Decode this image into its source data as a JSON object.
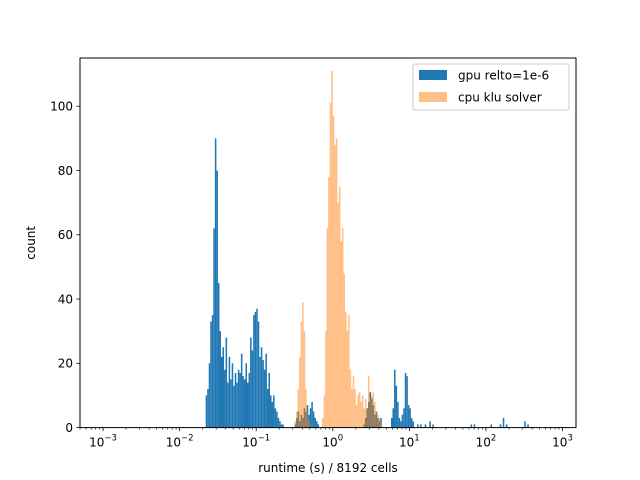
{
  "chart_data": {
    "type": "histogram",
    "xscale": "log",
    "xlim": [
      0.0005,
      1500
    ],
    "ylim": [
      0,
      115
    ],
    "xlabel": "runtime (s) / 8192 cells",
    "ylabel": "count",
    "grid": false,
    "legend_position": "upper right",
    "x_ticks": [
      {
        "value": 0.001,
        "base": "10",
        "exp": "−3"
      },
      {
        "value": 0.01,
        "base": "10",
        "exp": "−2"
      },
      {
        "value": 0.1,
        "base": "10",
        "exp": "−1"
      },
      {
        "value": 1,
        "base": "10",
        "exp": "0"
      },
      {
        "value": 10,
        "base": "10",
        "exp": "1"
      },
      {
        "value": 100,
        "base": "10",
        "exp": "2"
      },
      {
        "value": 1000,
        "base": "10",
        "exp": "3"
      }
    ],
    "y_ticks": [
      {
        "value": 0,
        "label": "0"
      },
      {
        "value": 20,
        "label": "20"
      },
      {
        "value": 40,
        "label": "40"
      },
      {
        "value": 60,
        "label": "60"
      },
      {
        "value": 80,
        "label": "80"
      },
      {
        "value": 100,
        "label": "100"
      }
    ],
    "series": [
      {
        "name": "gpu relto=1e-6",
        "color": "#1f77b4",
        "opacity": 1.0,
        "bin_width_log10": 0.02,
        "bins": [
          [
            -1.66,
            10
          ],
          [
            -1.64,
            12
          ],
          [
            -1.62,
            20
          ],
          [
            -1.6,
            33
          ],
          [
            -1.58,
            35
          ],
          [
            -1.56,
            62
          ],
          [
            -1.54,
            90
          ],
          [
            -1.52,
            80
          ],
          [
            -1.5,
            45
          ],
          [
            -1.48,
            30
          ],
          [
            -1.46,
            22
          ],
          [
            -1.44,
            25
          ],
          [
            -1.42,
            18
          ],
          [
            -1.4,
            28
          ],
          [
            -1.38,
            14
          ],
          [
            -1.36,
            22
          ],
          [
            -1.34,
            15
          ],
          [
            -1.32,
            20
          ],
          [
            -1.3,
            13
          ],
          [
            -1.28,
            17
          ],
          [
            -1.26,
            14
          ],
          [
            -1.24,
            18
          ],
          [
            -1.22,
            17
          ],
          [
            -1.2,
            23
          ],
          [
            -1.18,
            16
          ],
          [
            -1.16,
            15
          ],
          [
            -1.14,
            20
          ],
          [
            -1.12,
            14
          ],
          [
            -1.1,
            17
          ],
          [
            -1.08,
            28
          ],
          [
            -1.06,
            24
          ],
          [
            -1.04,
            35
          ],
          [
            -1.02,
            36
          ],
          [
            -1.0,
            37
          ],
          [
            -0.98,
            33
          ],
          [
            -0.96,
            22
          ],
          [
            -0.94,
            25
          ],
          [
            -0.92,
            21
          ],
          [
            -0.9,
            18
          ],
          [
            -0.88,
            23
          ],
          [
            -0.86,
            12
          ],
          [
            -0.84,
            17
          ],
          [
            -0.82,
            10
          ],
          [
            -0.8,
            8
          ],
          [
            -0.78,
            10
          ],
          [
            -0.76,
            6
          ],
          [
            -0.74,
            5
          ],
          [
            -0.72,
            3
          ],
          [
            -0.7,
            2
          ],
          [
            -0.68,
            1
          ],
          [
            -0.66,
            1
          ],
          [
            -0.5,
            1
          ],
          [
            -0.48,
            3
          ],
          [
            -0.46,
            5
          ],
          [
            -0.44,
            2
          ],
          [
            -0.42,
            4
          ],
          [
            -0.4,
            3
          ],
          [
            -0.38,
            6
          ],
          [
            -0.36,
            5
          ],
          [
            -0.34,
            7
          ],
          [
            -0.32,
            4
          ],
          [
            -0.3,
            6
          ],
          [
            -0.28,
            8
          ],
          [
            -0.26,
            5
          ],
          [
            -0.24,
            3
          ],
          [
            -0.22,
            2
          ],
          [
            -0.2,
            1
          ],
          [
            0.4,
            1
          ],
          [
            0.42,
            3
          ],
          [
            0.44,
            6
          ],
          [
            0.46,
            8
          ],
          [
            0.48,
            11
          ],
          [
            0.5,
            9
          ],
          [
            0.52,
            7
          ],
          [
            0.54,
            4
          ],
          [
            0.56,
            5
          ],
          [
            0.58,
            3
          ],
          [
            0.6,
            2
          ],
          [
            0.62,
            3
          ],
          [
            0.76,
            3
          ],
          [
            0.78,
            6
          ],
          [
            0.8,
            18
          ],
          [
            0.82,
            13
          ],
          [
            0.84,
            8
          ],
          [
            0.86,
            3
          ],
          [
            0.88,
            2
          ],
          [
            0.9,
            4
          ],
          [
            0.92,
            6
          ],
          [
            0.94,
            17
          ],
          [
            0.96,
            16
          ],
          [
            0.98,
            7
          ],
          [
            1.0,
            6
          ],
          [
            1.02,
            3
          ],
          [
            1.04,
            2
          ],
          [
            1.1,
            1
          ],
          [
            1.14,
            1
          ],
          [
            1.2,
            1
          ],
          [
            1.26,
            2
          ],
          [
            1.3,
            1
          ],
          [
            1.8,
            1
          ],
          [
            1.84,
            1
          ],
          [
            2.06,
            1
          ],
          [
            2.18,
            1
          ],
          [
            2.22,
            3
          ],
          [
            2.26,
            1
          ],
          [
            2.5,
            2
          ],
          [
            2.54,
            1
          ]
        ]
      },
      {
        "name": "cpu klu solver",
        "color": "#ff7f0e",
        "opacity": 0.5,
        "bin_width_log10": 0.02,
        "bins": [
          [
            -0.5,
            2
          ],
          [
            -0.48,
            5
          ],
          [
            -0.46,
            12
          ],
          [
            -0.44,
            22
          ],
          [
            -0.42,
            33
          ],
          [
            -0.4,
            39
          ],
          [
            -0.38,
            30
          ],
          [
            -0.36,
            12
          ],
          [
            -0.34,
            5
          ],
          [
            -0.32,
            2
          ],
          [
            -0.14,
            3
          ],
          [
            -0.12,
            10
          ],
          [
            -0.1,
            30
          ],
          [
            -0.08,
            62
          ],
          [
            -0.06,
            78
          ],
          [
            -0.04,
            101
          ],
          [
            -0.02,
            111
          ],
          [
            0.0,
            97
          ],
          [
            0.02,
            88
          ],
          [
            0.04,
            90
          ],
          [
            0.06,
            70
          ],
          [
            0.08,
            75
          ],
          [
            0.1,
            58
          ],
          [
            0.12,
            62
          ],
          [
            0.14,
            48
          ],
          [
            0.16,
            36
          ],
          [
            0.18,
            30
          ],
          [
            0.2,
            35
          ],
          [
            0.22,
            18
          ],
          [
            0.24,
            12
          ],
          [
            0.26,
            16
          ],
          [
            0.28,
            12
          ],
          [
            0.3,
            7
          ],
          [
            0.32,
            10
          ],
          [
            0.34,
            11
          ],
          [
            0.36,
            8
          ],
          [
            0.38,
            10
          ],
          [
            0.4,
            6
          ],
          [
            0.42,
            9
          ],
          [
            0.44,
            6
          ],
          [
            0.46,
            16
          ],
          [
            0.48,
            9
          ],
          [
            0.5,
            10
          ],
          [
            0.52,
            11
          ],
          [
            0.54,
            8
          ],
          [
            0.56,
            5
          ],
          [
            0.58,
            4
          ],
          [
            0.6,
            3
          ],
          [
            0.62,
            2
          ]
        ]
      }
    ]
  }
}
